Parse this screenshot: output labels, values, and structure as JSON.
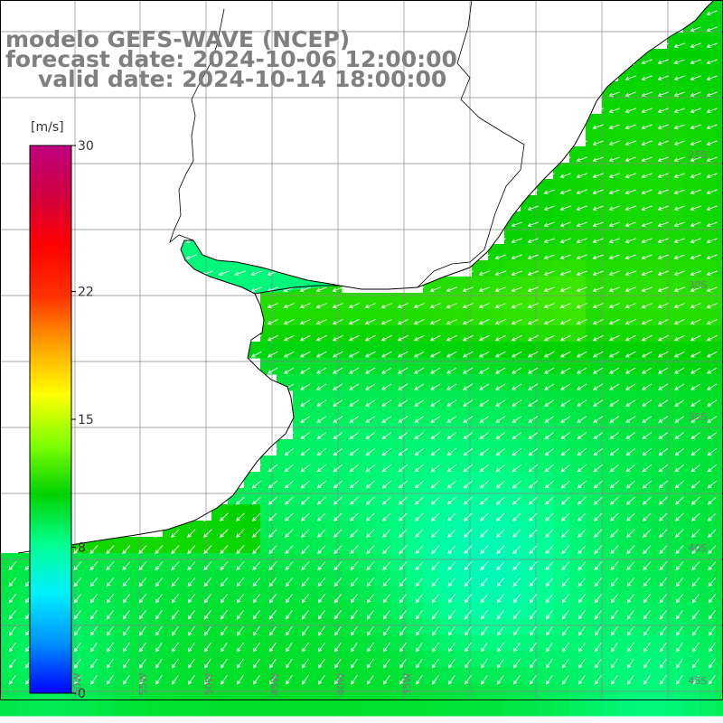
{
  "title": {
    "model": "modelo GEFS-WAVE (NCEP)",
    "forecast": "forecast date: 2024-10-06 12:00:00",
    "valid": "valid date: 2024-10-14 18:00:00"
  },
  "colorbar": {
    "unit": "[m/s]",
    "ticks": [
      "30",
      "22",
      "15",
      "8",
      "0"
    ],
    "tick_values": [
      30,
      22,
      15,
      8,
      0
    ],
    "range": [
      0,
      30
    ],
    "stops": [
      "#0000ff",
      "#0090ff",
      "#00f0ff",
      "#00ff90",
      "#00d200",
      "#80ff00",
      "#ffff00",
      "#ffa000",
      "#ff3000",
      "#ff0000",
      "#d00040",
      "#c00080"
    ]
  },
  "map": {
    "variable": "wind speed",
    "arrow_direction": "toward southwest",
    "lat_labels": [
      "25S",
      "30S",
      "35S",
      "40S",
      "45S"
    ],
    "lon_labels": [
      "60W",
      "55W",
      "50W",
      "45W",
      "40W",
      "35W"
    ],
    "colors": {
      "land": "#ffffff",
      "coast": "#000000",
      "grid": "#888888",
      "arrow": "#ffffff",
      "label": "#777777"
    }
  }
}
